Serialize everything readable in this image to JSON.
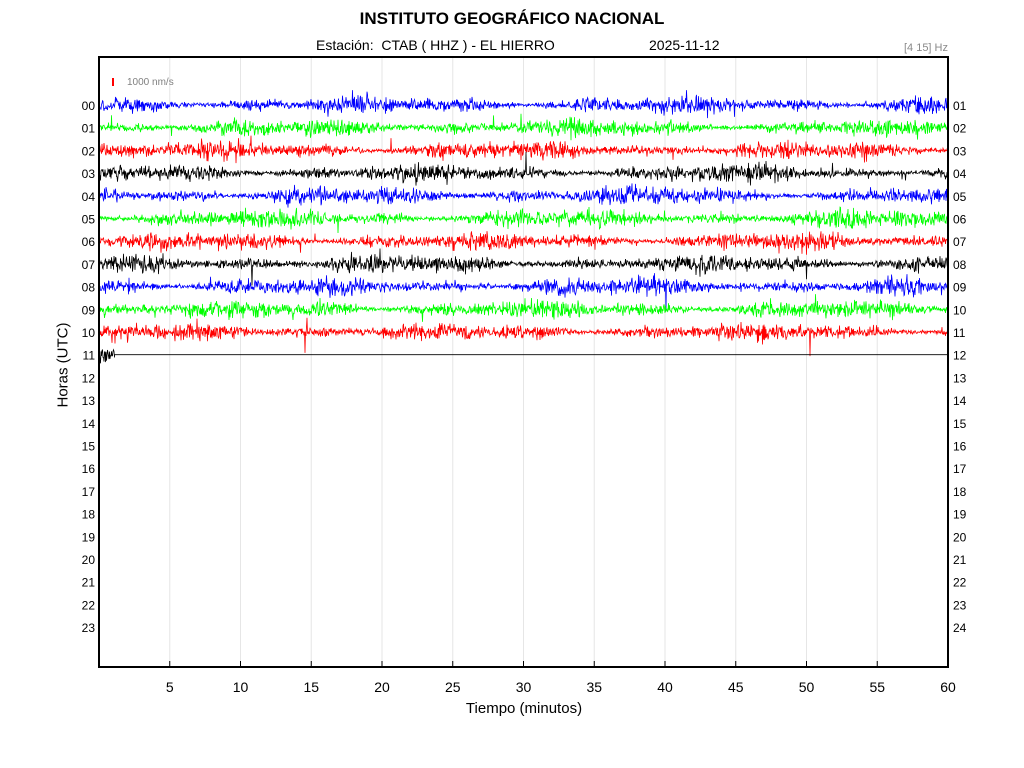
{
  "chart_data": {
    "type": "line",
    "title": "INSTITUTO GEOGRÁFICO NACIONAL",
    "station_label": "Estación:  CTAB ( HHZ ) - EL HIERRO",
    "date": "2025-11-12",
    "filter": "[4 15] Hz",
    "scale_label": "1000 nm/s",
    "xlabel": "Tiempo (minutos)",
    "ylabel": "Horas (UTC)",
    "xlim": [
      0,
      60
    ],
    "x_ticks": [
      5,
      10,
      15,
      20,
      25,
      30,
      35,
      40,
      45,
      50,
      55,
      60
    ],
    "left_hour_labels": [
      "00",
      "01",
      "02",
      "03",
      "04",
      "05",
      "06",
      "07",
      "08",
      "09",
      "10",
      "11",
      "12",
      "13",
      "14",
      "15",
      "16",
      "17",
      "18",
      "19",
      "20",
      "21",
      "22",
      "23"
    ],
    "right_hour_labels": [
      "01",
      "02",
      "03",
      "04",
      "05",
      "06",
      "07",
      "08",
      "09",
      "10",
      "11",
      "12",
      "13",
      "14",
      "15",
      "16",
      "17",
      "18",
      "19",
      "20",
      "21",
      "22",
      "23",
      "24"
    ],
    "grid": "vertical",
    "colors": {
      "trace_cycle": [
        "#0000ff",
        "#00ff00",
        "#ff0000",
        "#000000"
      ],
      "scale_mark": "#ff0000"
    },
    "series": [
      {
        "hour": 0,
        "color": "#0000ff",
        "end_minute": 60
      },
      {
        "hour": 1,
        "color": "#00ff00",
        "end_minute": 60
      },
      {
        "hour": 2,
        "color": "#ff0000",
        "end_minute": 60
      },
      {
        "hour": 3,
        "color": "#000000",
        "end_minute": 60
      },
      {
        "hour": 4,
        "color": "#0000ff",
        "end_minute": 60
      },
      {
        "hour": 5,
        "color": "#00ff00",
        "end_minute": 60
      },
      {
        "hour": 6,
        "color": "#ff0000",
        "end_minute": 60
      },
      {
        "hour": 7,
        "color": "#000000",
        "end_minute": 60
      },
      {
        "hour": 8,
        "color": "#0000ff",
        "end_minute": 60
      },
      {
        "hour": 9,
        "color": "#00ff00",
        "end_minute": 60
      },
      {
        "hour": 10,
        "color": "#ff0000",
        "end_minute": 60
      },
      {
        "hour": 11,
        "color": "#000000",
        "end_minute": 1.1
      }
    ]
  }
}
